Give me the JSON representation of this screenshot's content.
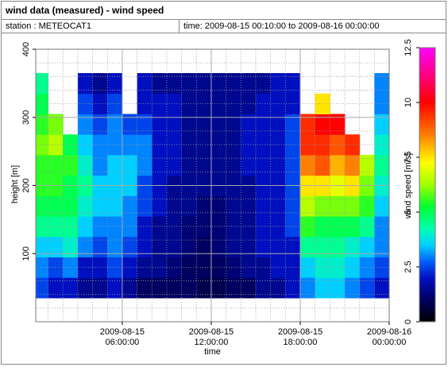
{
  "header": {
    "title": "wind data (measured) - wind speed",
    "station": "station : METEOCAT1",
    "time": "time: 2009-08-15 00:10:00 to 2009-08-16 00:00:00"
  },
  "chart_data": {
    "type": "heatmap",
    "x_label": "time",
    "y_label": "height [m]",
    "z_label": "wind speed [m/s]",
    "x": [
      0.5,
      1.5,
      2.5,
      3.5,
      4.5,
      5.5,
      6.5,
      7.5,
      8.5,
      9.5,
      10.5,
      11.5,
      12.5,
      13.5,
      14.5,
      15.5,
      16.5,
      17.5,
      18.5,
      19.5,
      20.5,
      21.5,
      22.5,
      23.5
    ],
    "y": [
      50,
      80,
      110,
      140,
      170,
      200,
      230,
      260,
      290,
      320,
      350
    ],
    "z": [
      [
        2.5,
        2,
        2,
        1.5,
        1.5,
        2,
        1.5,
        1,
        1,
        1,
        1,
        0.8,
        0.8,
        1,
        1,
        1.5,
        1.5,
        2,
        3,
        3.5,
        3.5,
        3,
        2.5,
        2
      ],
      [
        3,
        2.5,
        3,
        2,
        2,
        2.5,
        2,
        1.5,
        1.5,
        1.2,
        1,
        1,
        1,
        1.2,
        1.5,
        1.5,
        2,
        2,
        3.5,
        4,
        4,
        3.5,
        3,
        2.5
      ],
      [
        3.5,
        3.5,
        4,
        3,
        2.5,
        3,
        2.5,
        2,
        1.5,
        1.5,
        1.2,
        1,
        1.2,
        1.5,
        1.5,
        2,
        2,
        2,
        4.5,
        4.5,
        4.5,
        4,
        3.5,
        3
      ],
      [
        4.5,
        4.5,
        4.5,
        3.5,
        3,
        3,
        3,
        2,
        1.5,
        1.5,
        1.2,
        1.2,
        1.2,
        1.5,
        1.5,
        2,
        2,
        2.5,
        5.5,
        5,
        5,
        5,
        4.5,
        3
      ],
      [
        5,
        5,
        5,
        4,
        3.5,
        3.5,
        3,
        2.5,
        2,
        1.5,
        1.5,
        1.2,
        1.2,
        1.5,
        1.5,
        2,
        2,
        2.5,
        6.5,
        6,
        6,
        6,
        5.5,
        3.5
      ],
      [
        5.5,
        5.5,
        5,
        4.5,
        3.5,
        3.5,
        3.5,
        2.5,
        2,
        1.5,
        1.5,
        1.5,
        1.5,
        1.5,
        1.5,
        2,
        2,
        2.5,
        7.5,
        7.5,
        7,
        7.5,
        6,
        4
      ],
      [
        5.5,
        5.5,
        5.5,
        4,
        3,
        3.5,
        3.5,
        3,
        2,
        2,
        1.5,
        1.5,
        1.5,
        1.5,
        2,
        2,
        2,
        2.5,
        8.5,
        9,
        8,
        8.5,
        6.5,
        4.5
      ],
      [
        6,
        6.5,
        5,
        3.5,
        3,
        3,
        3,
        3,
        2,
        2,
        1.5,
        1.5,
        1.5,
        1.5,
        2,
        2,
        2,
        2.5,
        9.5,
        9.5,
        9,
        9.5,
        null,
        4
      ],
      [
        5.5,
        6,
        null,
        3,
        2.5,
        3,
        2.5,
        2.5,
        2,
        2,
        1.5,
        1.5,
        1.5,
        1.5,
        2,
        2,
        2,
        2.5,
        9.5,
        10,
        10,
        null,
        null,
        3.5
      ],
      [
        5,
        null,
        null,
        2.5,
        2,
        2.5,
        null,
        2,
        2,
        2,
        1.5,
        1.5,
        1.5,
        1.5,
        1.5,
        2,
        2,
        2,
        null,
        7.5,
        null,
        null,
        null,
        3
      ],
      [
        4.5,
        null,
        null,
        2,
        1.5,
        2,
        null,
        2,
        1.5,
        1.5,
        1.5,
        1.5,
        1.5,
        1.5,
        1.5,
        1.5,
        2,
        2,
        null,
        null,
        null,
        null,
        null,
        3
      ]
    ],
    "xlim": [
      0.1667,
      24
    ],
    "ylim": [
      0,
      400
    ],
    "zlim": [
      0,
      12.5
    ],
    "xticks": [
      {
        "value": 6,
        "label": "2009-08-15 06:00:00"
      },
      {
        "value": 12,
        "label": "2009-08-15 12:00:00"
      },
      {
        "value": 18,
        "label": "2009-08-15 18:00:00"
      },
      {
        "value": 24,
        "label": "2009-08-16 00:00:00"
      }
    ],
    "yticks": [
      100,
      200,
      300,
      400
    ],
    "zticks": [
      0,
      2.5,
      5,
      7.5,
      10,
      12.5
    ],
    "xminorticks": [
      1,
      2,
      3,
      4,
      5,
      7,
      8,
      9,
      10,
      11,
      13,
      14,
      15,
      16,
      17,
      19,
      20,
      21,
      22,
      23
    ],
    "yminorticks": [
      20,
      40,
      60,
      80,
      120,
      140,
      160,
      180,
      220,
      240,
      260,
      280,
      320,
      340,
      360,
      380
    ],
    "grid": true
  }
}
